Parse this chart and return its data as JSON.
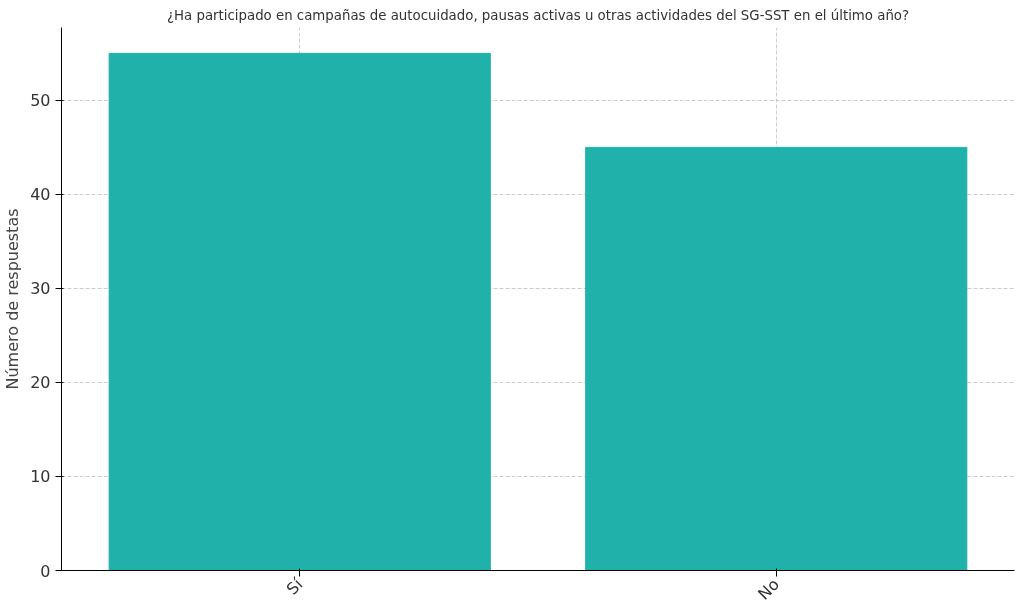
{
  "chart_data": {
    "type": "bar",
    "title": "¿Ha participado en campañas de autocuidado, pausas activas u otras actividades del SG-SST en el último año?",
    "ylabel": "Número de respuestas",
    "categories": [
      "Sí",
      "No"
    ],
    "values": [
      55,
      45
    ],
    "color": "#20b2aa",
    "ylim": [
      0,
      57.75
    ],
    "yticks": [
      0,
      10,
      20,
      30,
      40,
      50
    ],
    "grid": true
  }
}
